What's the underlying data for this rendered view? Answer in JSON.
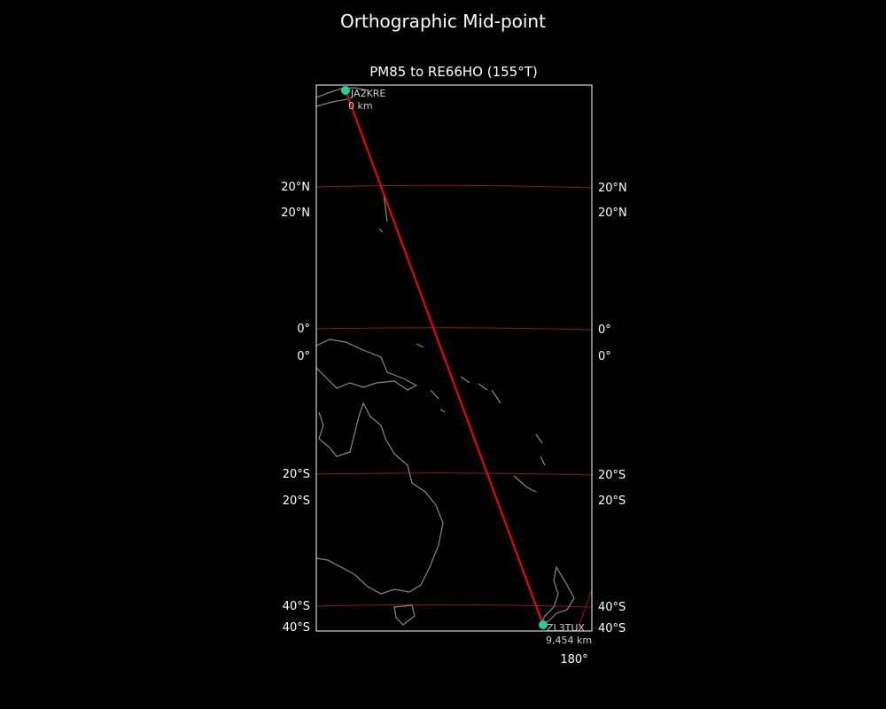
{
  "title": "Orthographic Mid-point",
  "subtitle": "PM85 to RE66HO (155°T)",
  "colors": {
    "background": "#000000",
    "path": "#ff0000",
    "graticule": "#8b1a1a",
    "coast": "#888888",
    "station": "#1fcf9a",
    "frame": "#ffffff"
  },
  "grid_labels": {
    "left": [
      "20°N",
      "20°N",
      "0°",
      "0°",
      "20°S",
      "20°S",
      "40°S",
      "40°S"
    ],
    "right": [
      "20°N",
      "20°N",
      "0°",
      "0°",
      "20°S",
      "20°S",
      "40°S",
      "40°S"
    ],
    "bottom": [
      "180°"
    ]
  },
  "start": {
    "call": "JA2KRE",
    "distance": "0 km"
  },
  "end": {
    "call": "ZL3TUX",
    "distance": "9,454 km"
  }
}
